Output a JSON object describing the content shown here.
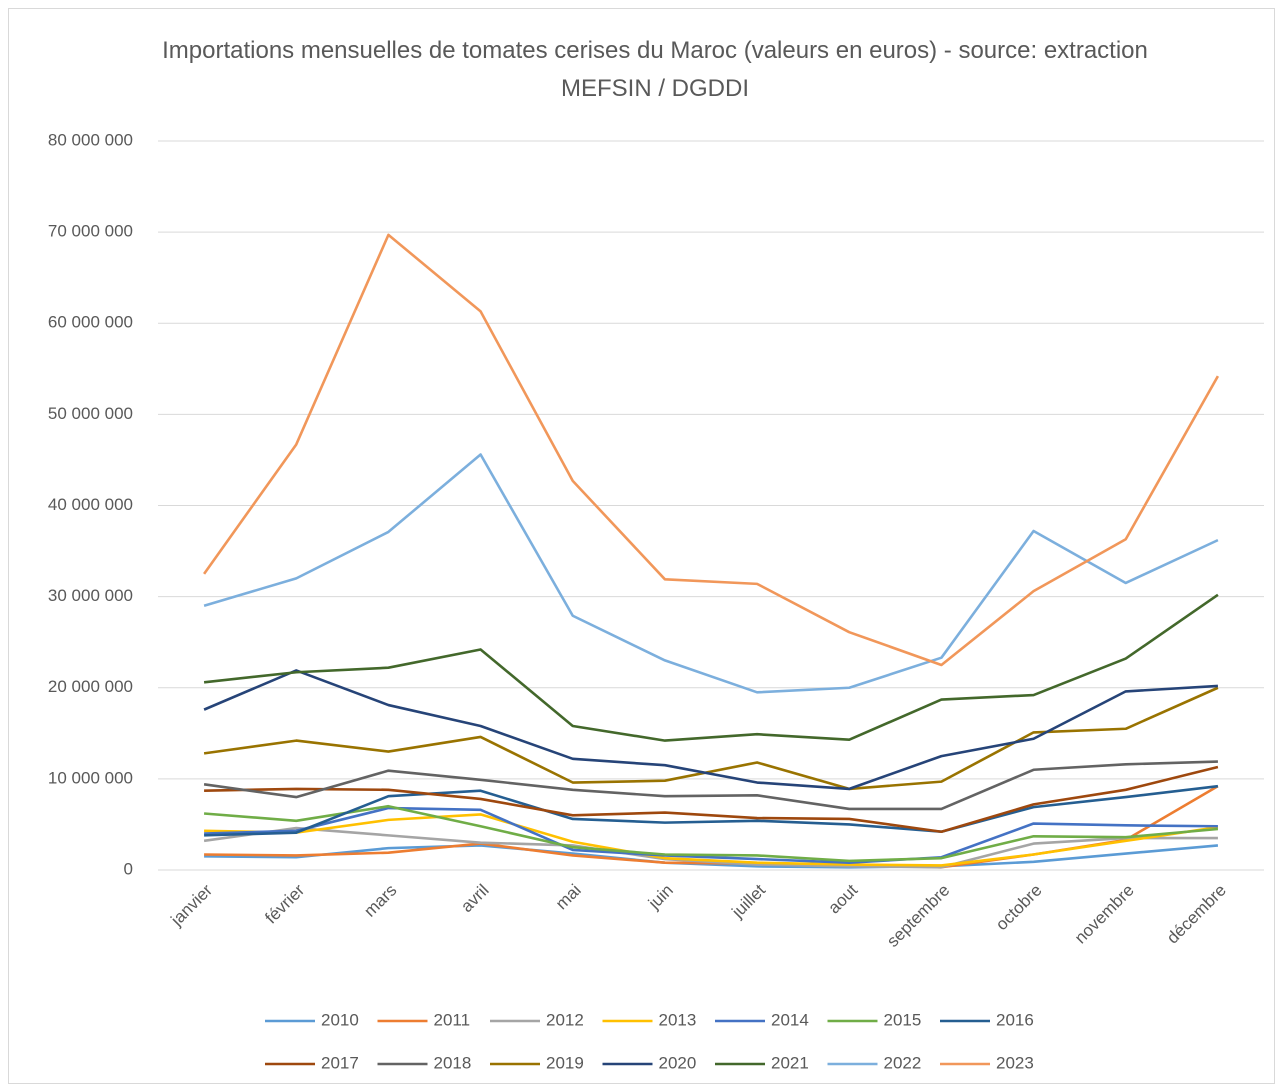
{
  "chart_data": {
    "type": "line",
    "title": "Importations mensuelles de tomates cerises du Maroc (valeurs en euros) - source: extraction MEFSIN / DGDDI",
    "categories": [
      "janvier",
      "février",
      "mars",
      "avril",
      "mai",
      "juin",
      "juillet",
      "aout",
      "septembre",
      "octobre",
      "novembre",
      "décembre"
    ],
    "ylim": [
      0,
      80000000
    ],
    "yticks": [
      0,
      {
        "value": 10000000,
        "label": "10 000 000"
      },
      {
        "value": 20000000,
        "label": "20 000 000"
      },
      {
        "value": 30000000,
        "label": "30 000 000"
      },
      {
        "value": 40000000,
        "label": "40 000 000"
      },
      {
        "value": 50000000,
        "label": "50 000 000"
      },
      {
        "value": 60000000,
        "label": "60 000 000"
      },
      {
        "value": 70000000,
        "label": "70 000 000"
      },
      {
        "value": 80000000,
        "label": "80 000 000"
      }
    ],
    "grid": true,
    "legend": "bottom",
    "series": [
      {
        "name": "2010",
        "color": "#5B9BD5",
        "values": [
          1500000,
          1400000,
          2400000,
          2700000,
          1800000,
          800000,
          400000,
          300000,
          400000,
          900000,
          1800000,
          2700000
        ]
      },
      {
        "name": "2011",
        "color": "#ED7D31",
        "values": [
          1700000,
          1600000,
          1900000,
          2900000,
          1600000,
          800000,
          700000,
          600000,
          300000,
          1700000,
          3300000,
          9200000
        ]
      },
      {
        "name": "2012",
        "color": "#A5A5A5",
        "values": [
          3200000,
          4600000,
          3800000,
          3000000,
          2700000,
          1200000,
          600000,
          400000,
          300000,
          2900000,
          3500000,
          3500000
        ]
      },
      {
        "name": "2013",
        "color": "#FFC000",
        "values": [
          4300000,
          4100000,
          5500000,
          6100000,
          3100000,
          1300000,
          800000,
          600000,
          500000,
          1700000,
          3200000,
          4700000
        ]
      },
      {
        "name": "2014",
        "color": "#4472C4",
        "values": [
          4000000,
          4300000,
          6800000,
          6600000,
          2200000,
          1600000,
          1200000,
          800000,
          1400000,
          5100000,
          4900000,
          4800000
        ]
      },
      {
        "name": "2015",
        "color": "#70AD47",
        "values": [
          6200000,
          5400000,
          7000000,
          4800000,
          2500000,
          1700000,
          1600000,
          1000000,
          1300000,
          3700000,
          3600000,
          4500000
        ]
      },
      {
        "name": "2016",
        "color": "#255E91",
        "values": [
          3800000,
          4100000,
          8100000,
          8700000,
          5600000,
          5200000,
          5400000,
          5000000,
          4200000,
          6900000,
          8000000,
          9200000
        ]
      },
      {
        "name": "2017",
        "color": "#9E480E",
        "values": [
          8700000,
          8900000,
          8800000,
          7800000,
          6000000,
          6300000,
          5700000,
          5600000,
          4200000,
          7200000,
          8800000,
          11300000
        ]
      },
      {
        "name": "2018",
        "color": "#636363",
        "values": [
          9400000,
          8000000,
          10900000,
          9900000,
          8800000,
          8100000,
          8200000,
          6700000,
          6700000,
          11000000,
          11600000,
          11900000
        ]
      },
      {
        "name": "2019",
        "color": "#997300",
        "values": [
          12800000,
          14200000,
          13000000,
          14600000,
          9600000,
          9800000,
          11800000,
          8900000,
          9700000,
          15100000,
          15500000,
          20000000
        ]
      },
      {
        "name": "2020",
        "color": "#264478",
        "values": [
          17600000,
          21900000,
          18100000,
          15800000,
          12200000,
          11500000,
          9600000,
          8900000,
          12500000,
          14400000,
          19600000,
          20200000
        ]
      },
      {
        "name": "2021",
        "color": "#43682B",
        "values": [
          20600000,
          21700000,
          22200000,
          24200000,
          15800000,
          14200000,
          14900000,
          14300000,
          18700000,
          19200000,
          23200000,
          30200000
        ]
      },
      {
        "name": "2022",
        "color": "#7CAFDD",
        "values": [
          29000000,
          32000000,
          37100000,
          45600000,
          27900000,
          23000000,
          19500000,
          20000000,
          23300000,
          37200000,
          31500000,
          36200000
        ]
      },
      {
        "name": "2023",
        "color": "#F1975A",
        "values": [
          32500000,
          46700000,
          69700000,
          61300000,
          42700000,
          31900000,
          31400000,
          26100000,
          22500000,
          30600000,
          36300000,
          54200000
        ]
      }
    ]
  }
}
